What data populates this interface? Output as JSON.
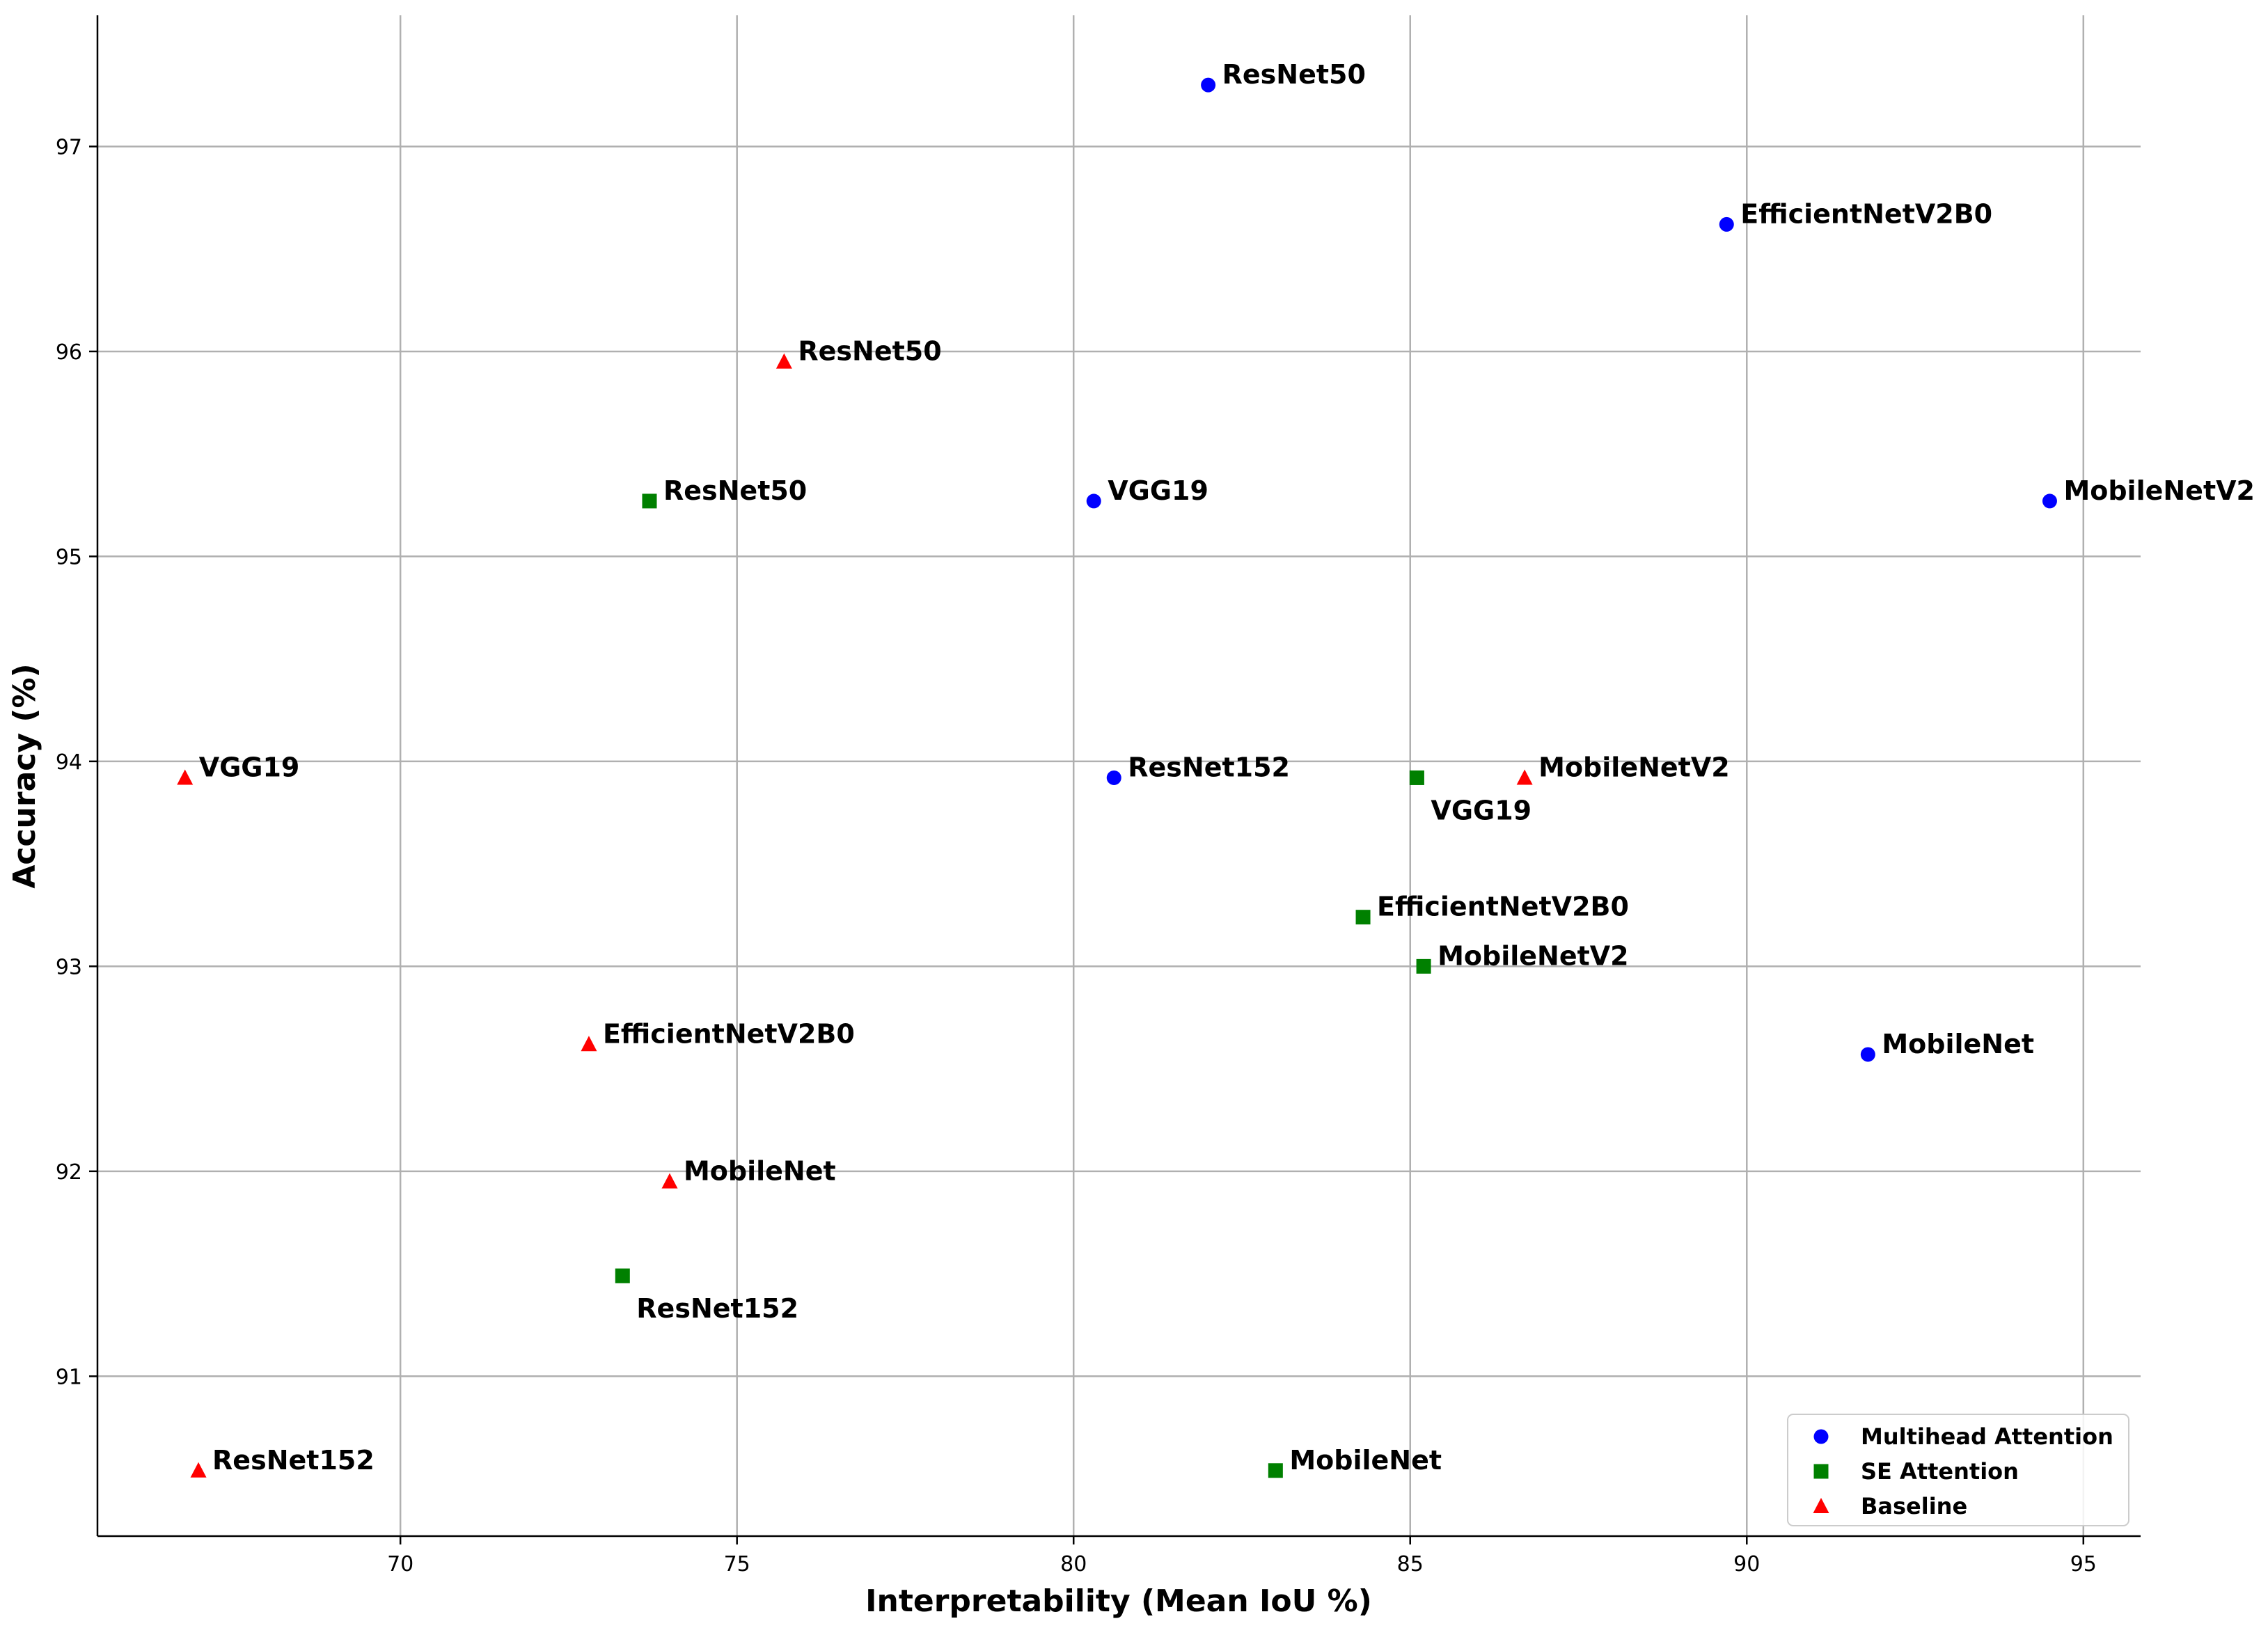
{
  "chart_data": {
    "type": "scatter",
    "title": "",
    "xlabel": "Interpretability (Mean IoU %)",
    "ylabel": "Accuracy (%)",
    "xlim": [
      65.5,
      95.85
    ],
    "ylim": [
      90.22,
      97.64
    ],
    "xticks": [
      70,
      75,
      80,
      85,
      90,
      95
    ],
    "yticks": [
      91,
      92,
      93,
      94,
      95,
      96,
      97
    ],
    "grid": true,
    "legend_position": "lower-right",
    "series": [
      {
        "name": "Multihead Attention",
        "color": "#0000ff",
        "marker": "circle",
        "points": [
          {
            "label": "ResNet50",
            "x": 82.0,
            "y": 97.3,
            "label_pos": "right"
          },
          {
            "label": "EfficientNetV2B0",
            "x": 89.7,
            "y": 96.62,
            "label_pos": "right"
          },
          {
            "label": "VGG19",
            "x": 80.3,
            "y": 95.27,
            "label_pos": "right"
          },
          {
            "label": "MobileNetV2",
            "x": 94.5,
            "y": 95.27,
            "label_pos": "right"
          },
          {
            "label": "ResNet152",
            "x": 80.6,
            "y": 93.92,
            "label_pos": "right"
          },
          {
            "label": "MobileNet",
            "x": 91.8,
            "y": 92.57,
            "label_pos": "right"
          }
        ]
      },
      {
        "name": "SE Attention",
        "color": "#008000",
        "marker": "square",
        "points": [
          {
            "label": "ResNet50",
            "x": 73.7,
            "y": 95.27,
            "label_pos": "right"
          },
          {
            "label": "VGG19",
            "x": 85.1,
            "y": 93.92,
            "label_pos": "below"
          },
          {
            "label": "EfficientNetV2B0",
            "x": 84.3,
            "y": 93.24,
            "label_pos": "right"
          },
          {
            "label": "MobileNetV2",
            "x": 85.2,
            "y": 93.0,
            "label_pos": "right"
          },
          {
            "label": "ResNet152",
            "x": 73.3,
            "y": 91.49,
            "label_pos": "below"
          },
          {
            "label": "MobileNet",
            "x": 83.0,
            "y": 90.54,
            "label_pos": "right"
          }
        ]
      },
      {
        "name": "Baseline",
        "color": "#ff0000",
        "marker": "triangle",
        "points": [
          {
            "label": "ResNet50",
            "x": 75.7,
            "y": 95.95,
            "label_pos": "right"
          },
          {
            "label": "VGG19",
            "x": 66.8,
            "y": 93.92,
            "label_pos": "right"
          },
          {
            "label": "MobileNetV2",
            "x": 86.7,
            "y": 93.92,
            "label_pos": "right"
          },
          {
            "label": "EfficientNetV2B0",
            "x": 72.8,
            "y": 92.62,
            "label_pos": "right"
          },
          {
            "label": "MobileNet",
            "x": 74.0,
            "y": 91.95,
            "label_pos": "right"
          },
          {
            "label": "ResNet152",
            "x": 67.0,
            "y": 90.54,
            "label_pos": "right"
          }
        ]
      }
    ]
  }
}
